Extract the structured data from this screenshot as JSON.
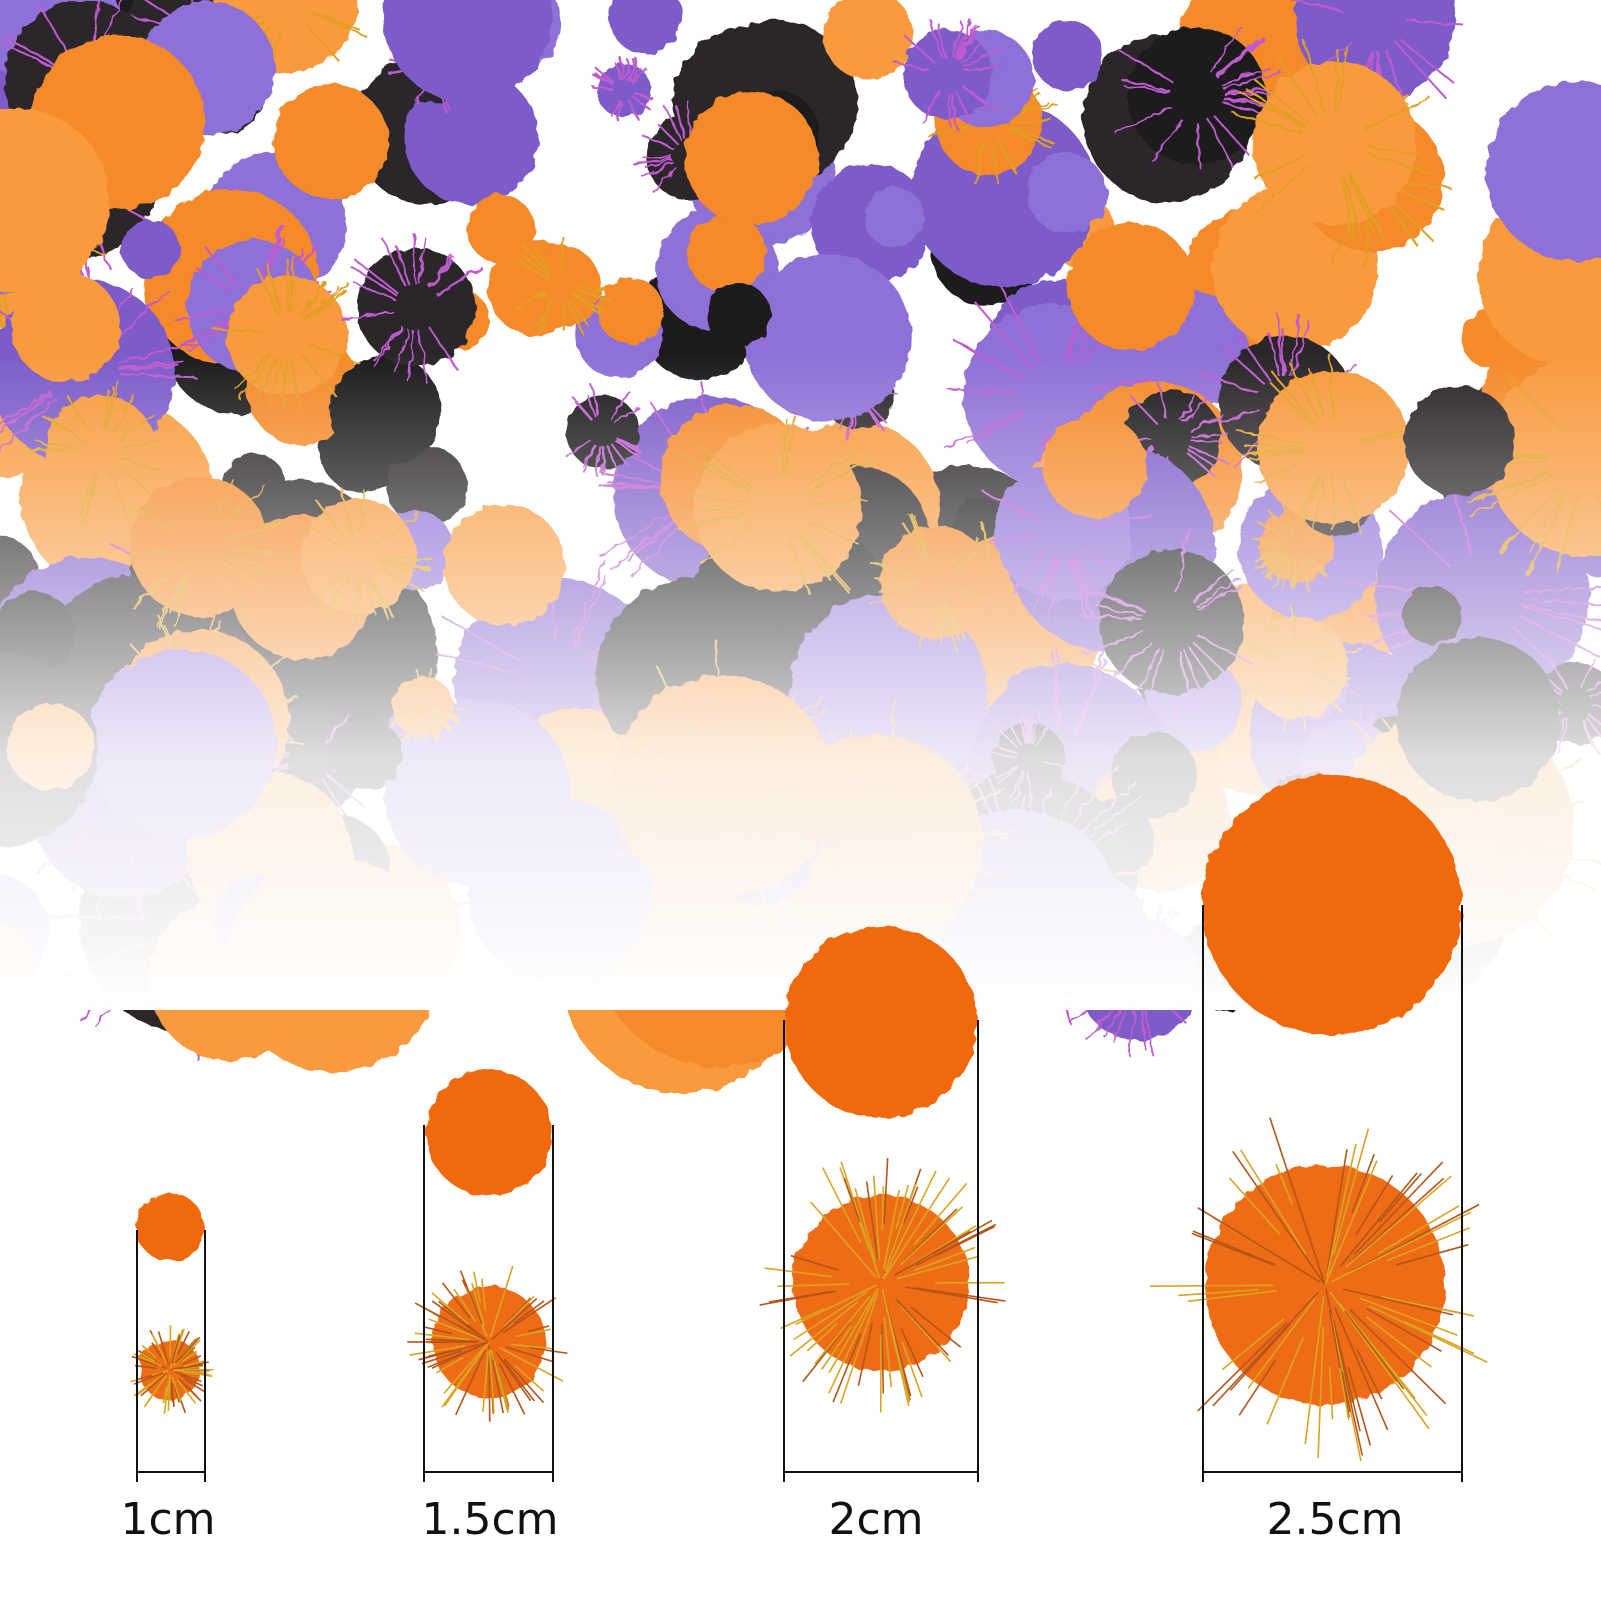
{
  "size_labels": [
    "1cm",
    "1.5cm",
    "2cm",
    "2.5cm"
  ]
}
